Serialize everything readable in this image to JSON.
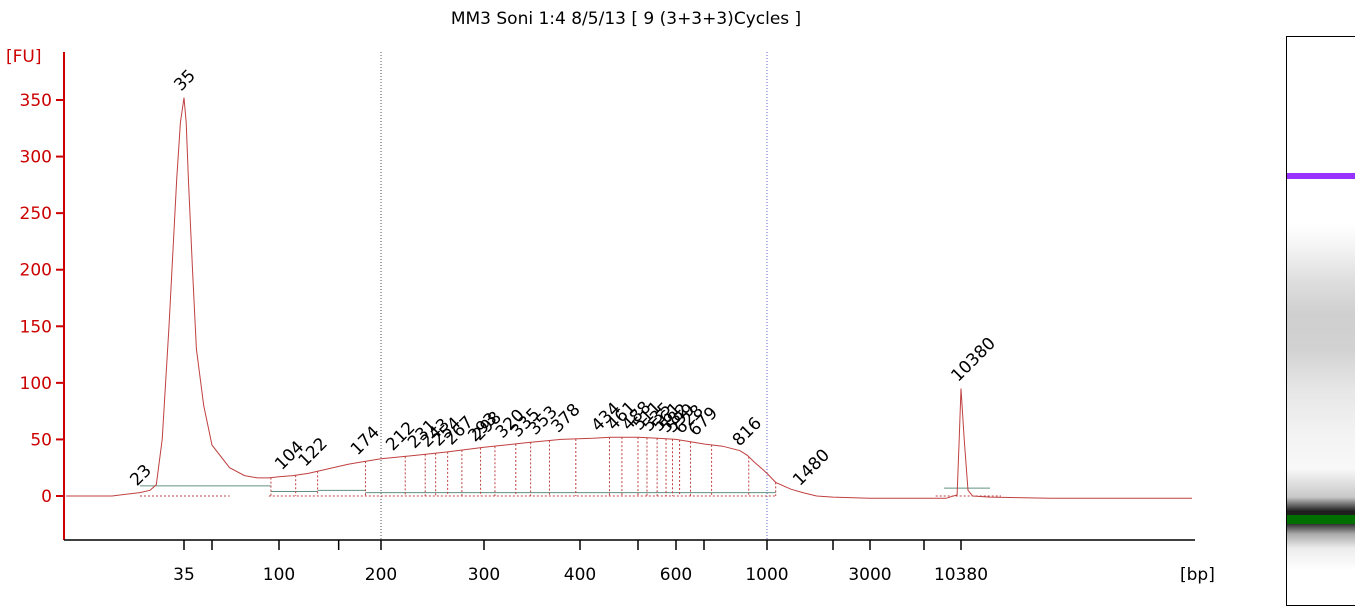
{
  "chart_data": {
    "type": "line",
    "title": "MM3 Soni 1:4 8/5/13  [ 9 (3+3+3)Cycles ]",
    "ylabel": "[FU]",
    "xlabel": "[bp]",
    "ylim": [
      -40,
      380
    ],
    "yticks": [
      0,
      50,
      100,
      150,
      200,
      250,
      300,
      350
    ],
    "xticks": [
      "35",
      "100",
      "200",
      "300",
      "400",
      "600",
      "1000",
      "3000",
      "10380"
    ],
    "x_scale": "nonlinear (electropherogram, ladder-calibrated)",
    "series": [
      {
        "x": [
          23,
          25,
          27,
          29,
          31,
          33,
          34,
          35,
          36,
          37,
          39,
          41,
          45,
          50,
          60,
          70,
          80,
          90,
          100,
          110,
          122,
          140,
          160,
          174,
          200,
          230,
          260,
          300,
          340,
          378,
          420,
          450,
          500,
          550,
          600,
          650,
          700,
          750,
          800,
          850,
          900,
          950,
          1000,
          1100,
          1300,
          1480,
          1700,
          2000,
          3000,
          5000,
          7000,
          9000,
          10000,
          10200,
          10380,
          10550,
          10750,
          11000,
          12000,
          15000,
          20000
        ],
        "y": [
          3,
          5,
          10,
          50,
          150,
          280,
          330,
          352,
          330,
          280,
          200,
          130,
          80,
          45,
          25,
          18,
          16,
          16,
          17,
          18,
          20,
          24,
          28,
          30,
          33,
          36,
          39,
          43,
          47,
          50,
          51,
          52,
          52,
          51,
          50,
          48,
          46,
          44,
          40,
          36,
          30,
          25,
          20,
          12,
          6,
          3,
          0,
          -1,
          -2,
          -2,
          -2,
          -2,
          1,
          50,
          95,
          50,
          5,
          0,
          -1,
          -2,
          -2
        ]
      }
    ],
    "peaks": [
      {
        "label": "23",
        "x": 23,
        "y": 3,
        "color": "#000000"
      },
      {
        "label": "35",
        "x": 35,
        "y": 352,
        "color": "#008000"
      },
      {
        "label": "104",
        "x": 104,
        "y": 17,
        "color": "#000000"
      },
      {
        "label": "122",
        "x": 122,
        "y": 20,
        "color": "#000000"
      },
      {
        "label": "174",
        "x": 174,
        "y": 30,
        "color": "#000000"
      },
      {
        "label": "212",
        "x": 212,
        "y": 34,
        "color": "#000000"
      },
      {
        "label": "231",
        "x": 231,
        "y": 36,
        "color": "#000000"
      },
      {
        "label": "243",
        "x": 243,
        "y": 37,
        "color": "#000000"
      },
      {
        "label": "254",
        "x": 254,
        "y": 38,
        "color": "#000000"
      },
      {
        "label": "267",
        "x": 267,
        "y": 39,
        "color": "#000000"
      },
      {
        "label": "293",
        "x": 293,
        "y": 42,
        "color": "#000000"
      },
      {
        "label": "298",
        "x": 298,
        "y": 43,
        "color": "#000000"
      },
      {
        "label": "320",
        "x": 320,
        "y": 45,
        "color": "#000000"
      },
      {
        "label": "335",
        "x": 335,
        "y": 46,
        "color": "#000000"
      },
      {
        "label": "353",
        "x": 353,
        "y": 48,
        "color": "#000000"
      },
      {
        "label": "378",
        "x": 378,
        "y": 50,
        "color": "#000000"
      },
      {
        "label": "434",
        "x": 434,
        "y": 51,
        "color": "#000000"
      },
      {
        "label": "461",
        "x": 461,
        "y": 52,
        "color": "#000000"
      },
      {
        "label": "488",
        "x": 488,
        "y": 52,
        "color": "#000000"
      },
      {
        "label": "511",
        "x": 511,
        "y": 52,
        "color": "#000000"
      },
      {
        "label": "535",
        "x": 535,
        "y": 51,
        "color": "#000000"
      },
      {
        "label": "561",
        "x": 561,
        "y": 51,
        "color": "#000000"
      },
      {
        "label": "582",
        "x": 582,
        "y": 50,
        "color": "#000000"
      },
      {
        "label": "599",
        "x": 599,
        "y": 50,
        "color": "#000000"
      },
      {
        "label": "628",
        "x": 628,
        "y": 49,
        "color": "#000000"
      },
      {
        "label": "679",
        "x": 679,
        "y": 47,
        "color": "#000000"
      },
      {
        "label": "816",
        "x": 816,
        "y": 38,
        "color": "#000000"
      },
      {
        "label": "1480",
        "x": 1480,
        "y": 3,
        "color": "#000000"
      },
      {
        "label": "10380",
        "x": 10380,
        "y": 95,
        "color": "#9933ff"
      }
    ],
    "grid": false,
    "colors": {
      "axis": "#cc0000",
      "trace": "#c04040",
      "baseline": "#609080",
      "marker_line": "#6666cc",
      "upper_marker": "#9933ff",
      "lower_marker": "#008000"
    }
  }
}
